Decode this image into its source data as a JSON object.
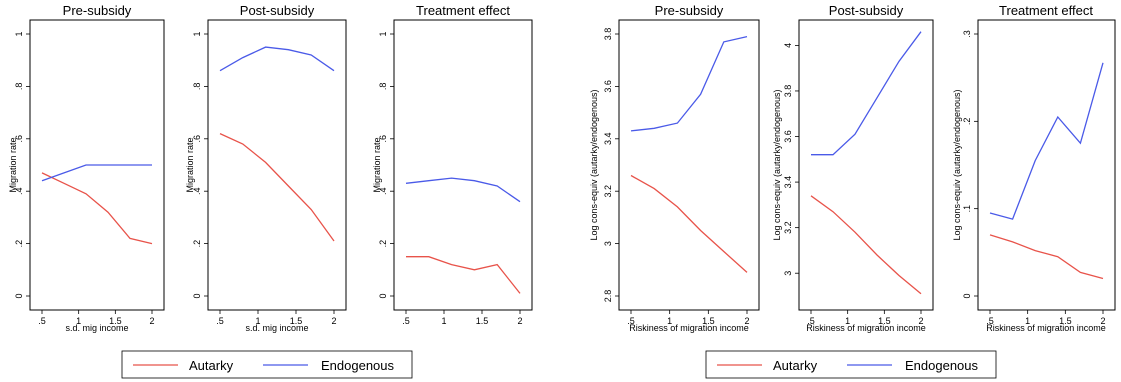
{
  "colors": {
    "autarky": "#e8534a",
    "endogenous": "#4a5ae8",
    "axis": "#000000"
  },
  "legends": [
    {
      "items": [
        {
          "name": "Autarky",
          "color": "#e8534a"
        },
        {
          "name": "Endogenous",
          "color": "#4a5ae8"
        }
      ]
    },
    {
      "items": [
        {
          "name": "Autarky",
          "color": "#e8534a"
        },
        {
          "name": "Endogenous",
          "color": "#4a5ae8"
        }
      ]
    }
  ],
  "chart_data": [
    {
      "type": "line",
      "title": "Pre-subsidy",
      "xlabel": "s.d. mig income",
      "ylabel": "Migration rate",
      "xlim": [
        0.5,
        2
      ],
      "ylim": [
        0,
        1
      ],
      "xticks": [
        0.5,
        1,
        1.5,
        2
      ],
      "xtick_labels": [
        ".5",
        "1",
        "1.5",
        "2"
      ],
      "yticks": [
        0,
        0.2,
        0.4,
        0.6,
        0.8,
        1
      ],
      "ytick_labels": [
        "0",
        ".2",
        ".4",
        ".6",
        ".8",
        "1"
      ],
      "x": [
        0.5,
        0.8,
        1.1,
        1.4,
        1.7,
        2.0
      ],
      "series": [
        {
          "name": "Autarky",
          "values": [
            0.47,
            0.43,
            0.39,
            0.32,
            0.22,
            0.2
          ]
        },
        {
          "name": "Endogenous",
          "values": [
            0.44,
            0.47,
            0.5,
            0.5,
            0.5,
            0.5
          ]
        }
      ]
    },
    {
      "type": "line",
      "title": "Post-subsidy",
      "xlabel": "s.d. mig income",
      "ylabel": "Migration rate",
      "xlim": [
        0.5,
        2
      ],
      "ylim": [
        0,
        1
      ],
      "xticks": [
        0.5,
        1,
        1.5,
        2
      ],
      "xtick_labels": [
        ".5",
        "1",
        "1.5",
        "2"
      ],
      "yticks": [
        0,
        0.2,
        0.4,
        0.6,
        0.8,
        1
      ],
      "ytick_labels": [
        "0",
        ".2",
        ".4",
        ".6",
        ".8",
        "1"
      ],
      "x": [
        0.5,
        0.8,
        1.1,
        1.4,
        1.7,
        2.0
      ],
      "series": [
        {
          "name": "Autarky",
          "values": [
            0.62,
            0.58,
            0.51,
            0.42,
            0.33,
            0.21
          ]
        },
        {
          "name": "Endogenous",
          "values": [
            0.86,
            0.91,
            0.95,
            0.94,
            0.92,
            0.86
          ]
        }
      ]
    },
    {
      "type": "line",
      "title": "Treatment effect",
      "xlabel": "",
      "ylabel": "Migration rate",
      "xlim": [
        0.5,
        2
      ],
      "ylim": [
        0,
        1
      ],
      "xticks": [
        0.5,
        1,
        1.5,
        2
      ],
      "xtick_labels": [
        ".5",
        "1",
        "1.5",
        "2"
      ],
      "yticks": [
        0,
        0.2,
        0.4,
        0.6,
        0.8,
        1
      ],
      "ytick_labels": [
        "0",
        ".2",
        ".4",
        ".6",
        ".8",
        "1"
      ],
      "x": [
        0.5,
        0.8,
        1.1,
        1.4,
        1.7,
        2.0
      ],
      "series": [
        {
          "name": "Autarky",
          "values": [
            0.15,
            0.15,
            0.12,
            0.1,
            0.12,
            0.01
          ]
        },
        {
          "name": "Endogenous",
          "values": [
            0.43,
            0.44,
            0.45,
            0.44,
            0.42,
            0.36
          ]
        }
      ]
    },
    {
      "type": "line",
      "title": "Pre-subsidy",
      "xlabel": "Riskiness of migration income",
      "ylabel": "Log cons-equiv (autarky/endogenous)",
      "xlim": [
        0.5,
        2
      ],
      "ylim": [
        2.8,
        3.8
      ],
      "xticks": [
        0.5,
        1,
        1.5,
        2
      ],
      "xtick_labels": [
        ".5",
        "1",
        "1.5",
        "2"
      ],
      "yticks": [
        2.8,
        3.0,
        3.2,
        3.4,
        3.6,
        3.8
      ],
      "ytick_labels": [
        "2.8",
        "3",
        "3.2",
        "3.4",
        "3.6",
        "3.8"
      ],
      "x": [
        0.5,
        0.8,
        1.1,
        1.4,
        1.7,
        2.0
      ],
      "series": [
        {
          "name": "Autarky",
          "values": [
            3.26,
            3.21,
            3.14,
            3.05,
            2.97,
            2.89
          ]
        },
        {
          "name": "Endogenous",
          "values": [
            3.43,
            3.44,
            3.46,
            3.57,
            3.77,
            3.79
          ]
        }
      ]
    },
    {
      "type": "line",
      "title": "Post-subsidy",
      "xlabel": "Riskiness of migration income",
      "ylabel": "Log cons-equiv (autarky/endogenous)",
      "xlim": [
        0.5,
        2
      ],
      "ylim": [
        2.9,
        4.05
      ],
      "xticks": [
        0.5,
        1,
        1.5,
        2
      ],
      "xtick_labels": [
        ".5",
        "1",
        "1.5",
        "2"
      ],
      "yticks": [
        3.0,
        3.2,
        3.4,
        3.6,
        3.8,
        4.0
      ],
      "ytick_labels": [
        "3",
        "3.2",
        "3.4",
        "3.6",
        "3.8",
        "4"
      ],
      "x": [
        0.5,
        0.8,
        1.1,
        1.4,
        1.7,
        2.0
      ],
      "series": [
        {
          "name": "Autarky",
          "values": [
            3.34,
            3.27,
            3.18,
            3.08,
            2.99,
            2.91
          ]
        },
        {
          "name": "Endogenous",
          "values": [
            3.52,
            3.52,
            3.61,
            3.77,
            3.93,
            4.06
          ]
        }
      ]
    },
    {
      "type": "line",
      "title": "Treatment effect",
      "xlabel": "Riskiness of migration income",
      "ylabel": "Log cons-equiv (autarky/endogenous)",
      "xlim": [
        0.5,
        2
      ],
      "ylim": [
        0,
        0.3
      ],
      "xticks": [
        0.5,
        1,
        1.5,
        2
      ],
      "xtick_labels": [
        ".5",
        "1",
        "1.5",
        "2"
      ],
      "yticks": [
        0,
        0.1,
        0.2,
        0.3
      ],
      "ytick_labels": [
        "0",
        ".1",
        ".2",
        ".3"
      ],
      "x": [
        0.5,
        0.8,
        1.1,
        1.4,
        1.7,
        2.0
      ],
      "series": [
        {
          "name": "Autarky",
          "values": [
            0.07,
            0.062,
            0.052,
            0.045,
            0.027,
            0.02
          ]
        },
        {
          "name": "Endogenous",
          "values": [
            0.095,
            0.088,
            0.155,
            0.205,
            0.175,
            0.267
          ]
        }
      ]
    }
  ]
}
